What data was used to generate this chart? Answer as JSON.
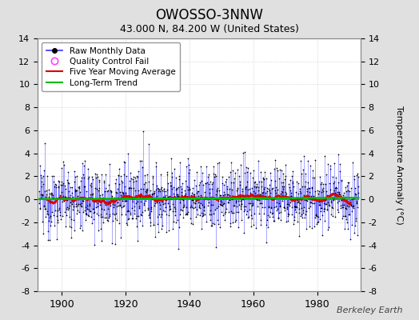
{
  "title": "OWOSSO-3NNW",
  "subtitle": "43.000 N, 84.200 W (United States)",
  "ylabel": "Temperature Anomaly (°C)",
  "attribution": "Berkeley Earth",
  "year_start": 1893,
  "year_end": 1993,
  "ylim": [
    -8,
    14
  ],
  "yticks": [
    -8,
    -6,
    -4,
    -2,
    0,
    2,
    4,
    6,
    8,
    10,
    12,
    14
  ],
  "xticks": [
    1900,
    1920,
    1940,
    1960,
    1980
  ],
  "bg_color": "#e0e0e0",
  "plot_bg_color": "#ffffff",
  "raw_line_color": "#3333ff",
  "raw_line_alpha": 0.6,
  "raw_marker_color": "#000000",
  "qc_fail_color": "#ff44ff",
  "moving_avg_color": "#dd0000",
  "trend_color": "#00bb00",
  "grid_color": "#cccccc",
  "grid_style": "dotted",
  "legend_bg": "#ffffff"
}
